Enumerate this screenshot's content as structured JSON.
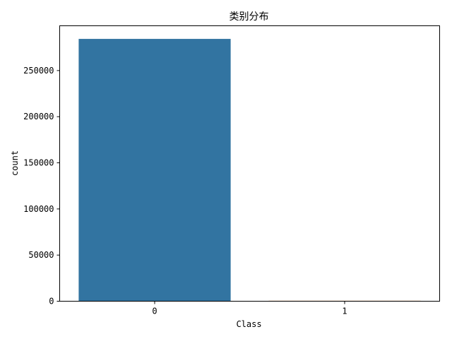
{
  "chart_data": {
    "type": "bar",
    "title": "类别分布",
    "xlabel": "Class",
    "ylabel": "count",
    "categories": [
      "0",
      "1"
    ],
    "values": [
      284315,
      492
    ],
    "colors": [
      "#3274a1",
      "#e1812c"
    ],
    "ylim": [
      0,
      298530
    ],
    "yticks": [
      0,
      50000,
      100000,
      150000,
      200000,
      250000
    ],
    "ytick_labels": [
      "0",
      "50000",
      "100000",
      "150000",
      "200000",
      "250000"
    ],
    "grid": false,
    "legend": "none"
  }
}
